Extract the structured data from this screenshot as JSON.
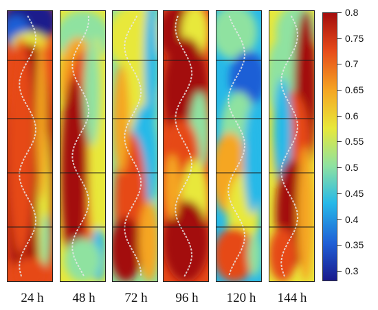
{
  "figure": {
    "panels": [
      {
        "label": "24 h"
      },
      {
        "label": "48 h"
      },
      {
        "label": "72 h"
      },
      {
        "label": "96 h"
      },
      {
        "label": "120 h"
      },
      {
        "label": "144 h"
      }
    ],
    "colorbar": {
      "min": 0.28,
      "max": 0.8,
      "ticks": [
        "0.8",
        "0.75",
        "0.7",
        "0.65",
        "0.6",
        "0.55",
        "0.5",
        "0.45",
        "0.4",
        "0.35",
        "0.3"
      ],
      "colors": [
        "#1a1a8c",
        "#1f5fd6",
        "#27b9e8",
        "#8fe2a0",
        "#e8e83a",
        "#f5a623",
        "#e64a19",
        "#a30d0d"
      ]
    }
  }
}
